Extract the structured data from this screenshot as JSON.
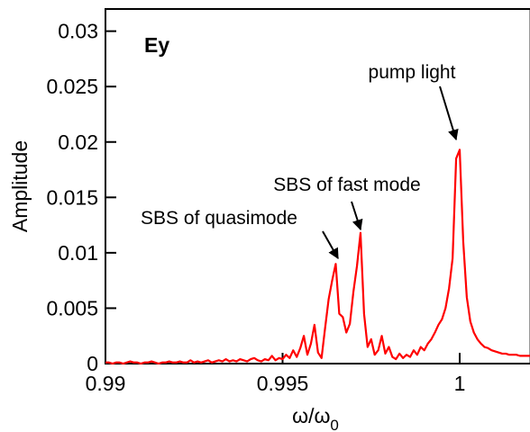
{
  "chart_data": {
    "type": "line",
    "ylabel": "Amplitude",
    "xlabel": {
      "main": "ω/ω",
      "sub": "0"
    },
    "annotations": {
      "panel": "Ey",
      "pump": "pump light",
      "fast": "SBS of fast mode",
      "quasi": "SBS of quasimode"
    },
    "color": "#ff0000",
    "xlim": [
      0.99,
      1.002
    ],
    "xticks": [
      0.99,
      0.995,
      1
    ],
    "ylim": [
      0,
      0.032
    ],
    "yticks": [
      0,
      0.005,
      0.01,
      0.015,
      0.02,
      0.025,
      0.03
    ],
    "x": [
      0.99,
      0.9901,
      0.9902,
      0.9903,
      0.9904,
      0.9905,
      0.9906,
      0.9907,
      0.9908,
      0.9909,
      0.991,
      0.9911,
      0.9912,
      0.9913,
      0.9914,
      0.9915,
      0.9916,
      0.9917,
      0.9918,
      0.9919,
      0.992,
      0.9921,
      0.9922,
      0.9923,
      0.9924,
      0.9925,
      0.9926,
      0.9927,
      0.9928,
      0.9929,
      0.993,
      0.9931,
      0.9932,
      0.9933,
      0.9934,
      0.9935,
      0.9936,
      0.9937,
      0.9938,
      0.9939,
      0.994,
      0.9941,
      0.9942,
      0.9943,
      0.9944,
      0.9945,
      0.9946,
      0.9947,
      0.9948,
      0.9949,
      0.995,
      0.9951,
      0.9952,
      0.9953,
      0.9954,
      0.9955,
      0.9956,
      0.9957,
      0.9958,
      0.9959,
      0.996,
      0.9961,
      0.9962,
      0.9963,
      0.9964,
      0.9965,
      0.9966,
      0.9967,
      0.9968,
      0.9969,
      0.997,
      0.9971,
      0.9972,
      0.9973,
      0.9974,
      0.9975,
      0.9976,
      0.9977,
      0.9978,
      0.9979,
      0.998,
      0.9981,
      0.9982,
      0.9983,
      0.9984,
      0.9985,
      0.9986,
      0.9987,
      0.9988,
      0.9989,
      0.999,
      0.9991,
      0.9992,
      0.9993,
      0.9994,
      0.9995,
      0.9996,
      0.9997,
      0.9998,
      0.9999,
      1.0,
      1.0001,
      1.0002,
      1.0003,
      1.0004,
      1.0005,
      1.0006,
      1.0007,
      1.0008,
      1.0009,
      1.001,
      1.0011,
      1.0012,
      1.0013,
      1.0014,
      1.0015,
      1.0016,
      1.0017,
      1.0018,
      1.0019,
      1.002
    ],
    "values": [
      0.0001,
      0.0001,
      0.0,
      0.0001,
      0.0001,
      0.0,
      0.0001,
      0.0002,
      0.0001,
      0.0001,
      0.0,
      0.0001,
      0.0001,
      0.0002,
      0.0001,
      0.0,
      0.0001,
      0.0001,
      0.0002,
      0.0001,
      0.0001,
      0.0002,
      0.0001,
      0.0001,
      0.0003,
      0.0001,
      0.0002,
      0.0001,
      0.0002,
      0.0003,
      0.0001,
      0.0002,
      0.0003,
      0.0002,
      0.0004,
      0.0002,
      0.0003,
      0.0002,
      0.0004,
      0.0003,
      0.0002,
      0.0004,
      0.0005,
      0.0003,
      0.0002,
      0.0004,
      0.0003,
      0.0007,
      0.0003,
      0.0005,
      0.0004,
      0.0008,
      0.0005,
      0.0012,
      0.0006,
      0.0014,
      0.0025,
      0.0008,
      0.0018,
      0.0035,
      0.001,
      0.0005,
      0.0032,
      0.0058,
      0.0075,
      0.009,
      0.0045,
      0.0042,
      0.0028,
      0.0036,
      0.0065,
      0.0088,
      0.0118,
      0.0045,
      0.0015,
      0.0022,
      0.0008,
      0.0012,
      0.0025,
      0.0009,
      0.0015,
      0.0006,
      0.0004,
      0.0009,
      0.0005,
      0.0008,
      0.0006,
      0.0012,
      0.0008,
      0.0015,
      0.0012,
      0.0018,
      0.0022,
      0.0028,
      0.0035,
      0.004,
      0.005,
      0.0068,
      0.0095,
      0.0185,
      0.0193,
      0.011,
      0.006,
      0.0038,
      0.0028,
      0.0022,
      0.0018,
      0.0015,
      0.0014,
      0.0012,
      0.0011,
      0.001,
      0.0009,
      0.0009,
      0.0008,
      0.0008,
      0.0008,
      0.0007,
      0.0007,
      0.0007,
      0.0007
    ]
  }
}
